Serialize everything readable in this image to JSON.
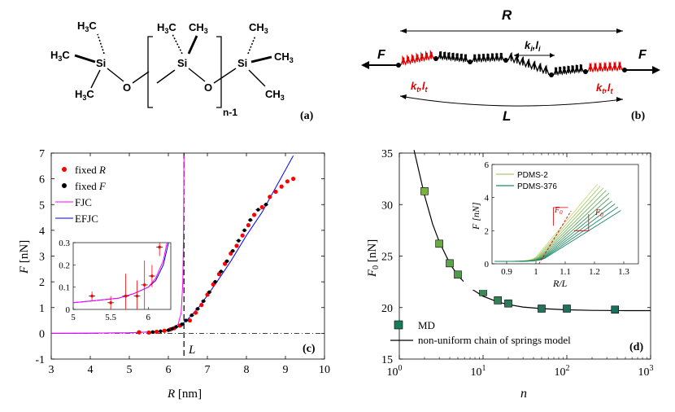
{
  "panel_a": {
    "label": "(a)",
    "groups": {
      "h3c": "H",
      "h3c_sub": "3",
      "h3c_c": "C",
      "ch3": "CH",
      "ch3_sub": "3",
      "si": "Si",
      "o": "O",
      "n_minus_1": "n-1"
    }
  },
  "panel_b": {
    "label": "(b)",
    "R": "R",
    "L": "L",
    "F": "F",
    "ki_li": "k",
    "ki_sub": "i",
    "li_l": "l",
    "li_sub": "i",
    "kt": "k",
    "kt_sub": "t",
    "lt_l": "l",
    "lt_sub": "t"
  },
  "chart_data": [
    {
      "type": "scatter",
      "panel_label": "(c)",
      "xlabel_var": "R",
      "xlabel_unit": "[nm]",
      "ylabel_var": "F",
      "ylabel_unit": "[nN]",
      "xlim": [
        3,
        10
      ],
      "ylim": [
        -1,
        7
      ],
      "xticks": [
        "3",
        "4",
        "5",
        "6",
        "7",
        "8",
        "9",
        "10"
      ],
      "yticks": [
        "-1",
        "0",
        "1",
        "2",
        "3",
        "4",
        "5",
        "6",
        "7"
      ],
      "vline_label": "L",
      "vline_x": 6.4,
      "legend": [
        {
          "label": "fixed",
          "var": "R",
          "color": "#ff0000",
          "kind": "dot"
        },
        {
          "label": "fixed",
          "var": "F",
          "color": "#000000",
          "kind": "dot"
        },
        {
          "label": "FJC",
          "color": "#ff00ff",
          "kind": "line"
        },
        {
          "label": "EFJC",
          "color": "#0000ff",
          "kind": "line"
        }
      ],
      "series": [
        {
          "name": "fixed R",
          "color": "#ff0000",
          "x": [
            5.25,
            5.5,
            5.7,
            5.9,
            6.05,
            6.15,
            6.3,
            6.55,
            6.7,
            6.85,
            7.0,
            7.15,
            7.3,
            7.45,
            7.6,
            7.75,
            7.9,
            8.05,
            8.2,
            8.4,
            8.6,
            8.75,
            8.9,
            9.05,
            9.2
          ],
          "y": [
            0.04,
            0.03,
            0.06,
            0.1,
            0.15,
            0.2,
            0.3,
            0.5,
            0.8,
            1.1,
            1.5,
            1.9,
            2.3,
            2.7,
            3.1,
            3.4,
            3.8,
            4.2,
            4.6,
            4.9,
            5.3,
            5.5,
            5.7,
            5.9,
            6.0
          ]
        },
        {
          "name": "fixed F",
          "color": "#000000",
          "x": [
            5.6,
            5.8,
            6.0,
            6.1,
            6.2,
            6.35,
            6.45,
            6.6,
            6.75,
            6.9,
            7.05,
            7.2,
            7.35,
            7.5,
            7.65,
            7.8,
            7.95,
            8.1,
            8.3,
            8.5
          ],
          "y": [
            0.05,
            0.08,
            0.12,
            0.18,
            0.25,
            0.35,
            0.5,
            0.7,
            0.95,
            1.25,
            1.6,
            2.0,
            2.4,
            2.8,
            3.2,
            3.6,
            4.0,
            4.4,
            4.8,
            5.0
          ]
        },
        {
          "name": "FJC",
          "color": "#ff00ff",
          "x": [
            3,
            4,
            5,
            5.5,
            5.9,
            6.1,
            6.25,
            6.33,
            6.37,
            6.39,
            6.4
          ],
          "y": [
            0,
            0.005,
            0.02,
            0.05,
            0.1,
            0.18,
            0.35,
            0.8,
            2.0,
            4.0,
            6.9
          ]
        },
        {
          "name": "EFJC",
          "color": "#0000ff",
          "x": [
            3,
            4,
            5,
            5.5,
            5.9,
            6.1,
            6.3,
            6.5,
            6.8,
            7.2,
            7.6,
            8.0,
            8.4,
            8.8,
            9.2
          ],
          "y": [
            0,
            0.005,
            0.02,
            0.05,
            0.1,
            0.16,
            0.3,
            0.55,
            1.05,
            1.9,
            2.8,
            3.8,
            4.7,
            5.8,
            6.9
          ]
        }
      ],
      "inset": {
        "xlim": [
          5,
          6.3
        ],
        "ylim": [
          0,
          0.3
        ],
        "xticks": [
          "5",
          "5.5",
          "6"
        ],
        "yticks": [
          "0",
          "0.1",
          "0.2",
          "0.3"
        ],
        "points": {
          "x": [
            5.25,
            5.5,
            5.7,
            5.85,
            5.95,
            6.05,
            6.15
          ],
          "y": [
            0.06,
            0.03,
            0.06,
            0.06,
            0.11,
            0.15,
            0.28
          ],
          "err": [
            0.02,
            0.03,
            0.1,
            0.07,
            0.11,
            0.05,
            0.04
          ]
        },
        "fjc": {
          "x": [
            5,
            5.3,
            5.6,
            5.8,
            6.0,
            6.1,
            6.2,
            6.25
          ],
          "y": [
            0.03,
            0.04,
            0.05,
            0.07,
            0.1,
            0.14,
            0.22,
            0.3
          ]
        },
        "efjc": {
          "x": [
            5,
            5.3,
            5.6,
            5.8,
            6.0,
            6.1,
            6.2,
            6.27
          ],
          "y": [
            0.03,
            0.04,
            0.05,
            0.07,
            0.1,
            0.13,
            0.2,
            0.3
          ]
        }
      }
    },
    {
      "type": "scatter",
      "panel_label": "(d)",
      "xscale": "log",
      "xlabel_var": "n",
      "ylabel_var": "F",
      "ylabel_sub": "0",
      "ylabel_unit": "[nN]",
      "xlim": [
        1,
        1000
      ],
      "ylim": [
        15,
        35
      ],
      "xticks": [
        {
          "base": "10",
          "exp": "0"
        },
        {
          "base": "10",
          "exp": "1"
        },
        {
          "base": "10",
          "exp": "2"
        },
        {
          "base": "10",
          "exp": "3"
        }
      ],
      "yticks": [
        "15",
        "20",
        "25",
        "30",
        "35"
      ],
      "legend": [
        {
          "label": "MD",
          "kind": "square",
          "color": "#1a7a5e"
        },
        {
          "label": "non-uniform chain of springs model",
          "kind": "line",
          "color": "#000000"
        }
      ],
      "series": [
        {
          "name": "MD",
          "x": [
            2,
            3,
            4,
            5,
            7,
            10,
            15,
            20,
            50,
            100,
            376
          ],
          "y": [
            31.3,
            26.2,
            24.3,
            23.2,
            22.1,
            21.5,
            20.7,
            20.4,
            19.9,
            19.9,
            19.8
          ],
          "colors": [
            "#7ab341",
            "#6aaa45",
            "#5ea34a",
            "#52994e",
            "#468f52",
            "#3c8756",
            "#337f58",
            "#2c7a5a",
            "#24745c",
            "#1f715d",
            "#1a6f5e"
          ]
        },
        {
          "name": "non-uniform chain of springs model",
          "x": [
            1.5,
            1.8,
            2,
            2.5,
            3,
            4,
            5,
            7,
            10,
            15,
            20,
            30,
            50,
            100,
            200,
            500,
            1000
          ],
          "y": [
            35.5,
            32.5,
            30.9,
            28.1,
            26.4,
            24.3,
            23.1,
            21.9,
            21.1,
            20.55,
            20.3,
            20.05,
            19.9,
            19.78,
            19.73,
            19.7,
            19.7
          ]
        }
      ],
      "inset": {
        "xlim": [
          0.85,
          1.35
        ],
        "ylim": [
          0,
          6
        ],
        "xticks": [
          "0.9",
          "1",
          "1.1",
          "1.2",
          "1.3"
        ],
        "yticks": [
          "0",
          "2",
          "4",
          "6"
        ],
        "xlabel": "R/L",
        "ylabel": "F [nN]",
        "legend": [
          "PDMS-2",
          "PDMS-376"
        ],
        "annotation_F0": "F",
        "annotation_F0_sub": "0"
      }
    }
  ]
}
